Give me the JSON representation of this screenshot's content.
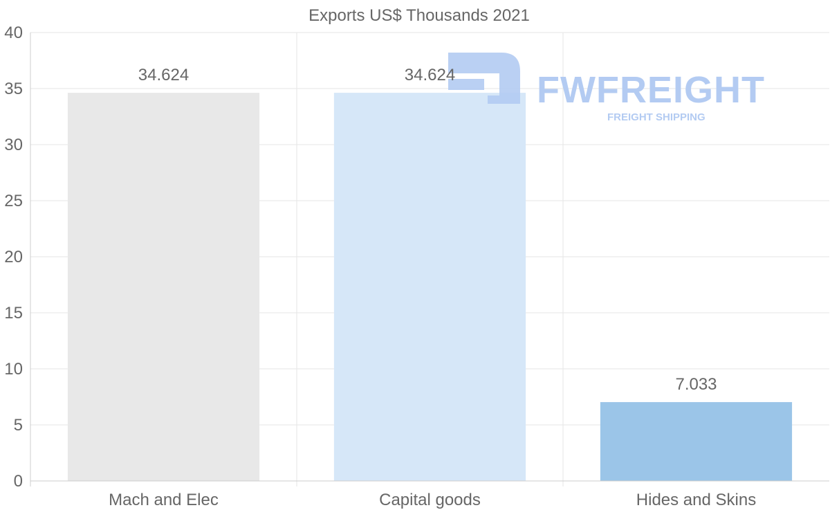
{
  "chart_data": {
    "type": "bar",
    "title": "Exports US$ Thousands 2021",
    "categories": [
      "Mach and Elec",
      "Capital goods",
      "Hides and Skins"
    ],
    "values": [
      34.624,
      34.624,
      7.033
    ],
    "value_labels": [
      "34.624",
      "34.624",
      "7.033"
    ],
    "bar_colors": [
      "#e8e8e8",
      "#d6e7f8",
      "#9bc5e8"
    ],
    "xlabel": "",
    "ylabel": "",
    "ylim": [
      0,
      40
    ],
    "yticks": [
      0,
      5,
      10,
      15,
      20,
      25,
      30,
      35,
      40
    ],
    "grid": true,
    "legend": "none"
  },
  "watermark": {
    "brand": "FWFREIGHT",
    "tagline": "FREIGHT SHIPPING",
    "color": "#b3cbf2"
  },
  "colors": {
    "text": "#666666",
    "grid": "#e6e6e6",
    "axis": "#cccccc"
  }
}
